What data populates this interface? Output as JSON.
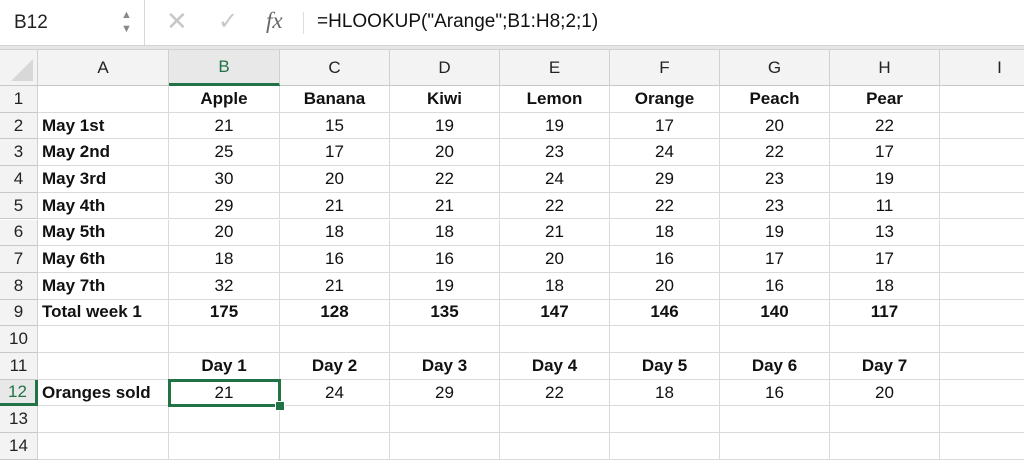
{
  "formula_bar": {
    "name_box": "B12",
    "formula": "=HLOOKUP(\"Arange\";B1:H8;2;1)",
    "icons": [
      "name-box-stepper-icon",
      "cancel-icon",
      "enter-check-icon",
      "function-fx-icon"
    ],
    "fx_label": "fx"
  },
  "sheet": {
    "selected_cell": "B12",
    "accent_color": "#217346",
    "columns": [
      "A",
      "B",
      "C",
      "D",
      "E",
      "F",
      "G",
      "H",
      "I"
    ],
    "rows": [
      [
        "",
        "Apple",
        "Banana",
        "Kiwi",
        "Lemon",
        "Orange",
        "Peach",
        "Pear",
        ""
      ],
      [
        "May 1st",
        "21",
        "15",
        "19",
        "19",
        "17",
        "20",
        "22",
        ""
      ],
      [
        "May 2nd",
        "25",
        "17",
        "20",
        "23",
        "24",
        "22",
        "17",
        ""
      ],
      [
        "May 3rd",
        "30",
        "20",
        "22",
        "24",
        "29",
        "23",
        "19",
        ""
      ],
      [
        "May 4th",
        "29",
        "21",
        "21",
        "22",
        "22",
        "23",
        "11",
        ""
      ],
      [
        "May 5th",
        "20",
        "18",
        "18",
        "21",
        "18",
        "19",
        "13",
        ""
      ],
      [
        "May 6th",
        "18",
        "16",
        "16",
        "20",
        "16",
        "17",
        "17",
        ""
      ],
      [
        "May 7th",
        "32",
        "21",
        "19",
        "18",
        "20",
        "16",
        "18",
        ""
      ],
      [
        "Total week 1",
        "175",
        "128",
        "135",
        "147",
        "146",
        "140",
        "117",
        ""
      ],
      [
        "",
        "",
        "",
        "",
        "",
        "",
        "",
        "",
        ""
      ],
      [
        "",
        "Day 1",
        "Day 2",
        "Day 3",
        "Day 4",
        "Day 5",
        "Day 6",
        "Day 7",
        ""
      ],
      [
        "Oranges sold",
        "21",
        "24",
        "29",
        "22",
        "18",
        "16",
        "20",
        ""
      ],
      [
        "",
        "",
        "",
        "",
        "",
        "",
        "",
        "",
        ""
      ],
      [
        "",
        "",
        "",
        "",
        "",
        "",
        "",
        "",
        ""
      ]
    ],
    "bold_rows": [
      1,
      9,
      11
    ],
    "bold_label_column": true
  }
}
